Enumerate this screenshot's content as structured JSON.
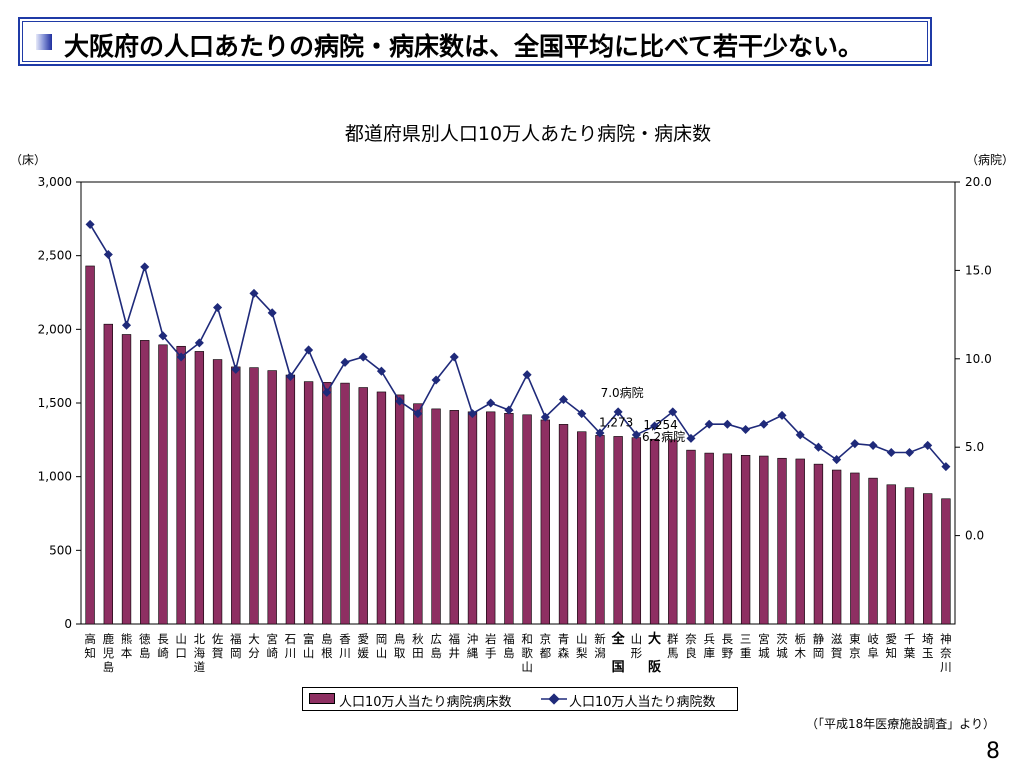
{
  "slide": {
    "header_text": "大阪府の人口あたりの病院・病床数は、全国平均に比べて若干少ない。",
    "source_note": "（「平成18年医療施設調査」より）",
    "page_number": "8"
  },
  "colors": {
    "bar": "#8e2f62",
    "line": "#1f2a7a",
    "header_border": "#1f3aa6"
  },
  "chart_data": {
    "type": "bar+line",
    "title": "都道府県別人口10万人あたり病院・病床数",
    "y_left_unit": "（床）",
    "y_right_unit": "（病院）",
    "y_left_range": [
      0,
      3000
    ],
    "y_left_ticks": [
      "0",
      "500",
      "1,000",
      "1,500",
      "2,000",
      "2,500",
      "3,000"
    ],
    "y_right_range": [
      -5,
      20
    ],
    "y_right_ticks": [
      "0.0",
      "5.0",
      "10.0",
      "15.0",
      "20.0"
    ],
    "grid": false,
    "legend_position": "bottom",
    "categories": [
      [
        "高",
        "知"
      ],
      [
        "鹿",
        "児",
        "島"
      ],
      [
        "熊",
        "本"
      ],
      [
        "徳",
        "島"
      ],
      [
        "長",
        "崎"
      ],
      [
        "山",
        "口"
      ],
      [
        "北",
        "海",
        "道"
      ],
      [
        "佐",
        "賀"
      ],
      [
        "福",
        "岡"
      ],
      [
        "大",
        "分"
      ],
      [
        "宮",
        "崎"
      ],
      [
        "石",
        "川"
      ],
      [
        "富",
        "山"
      ],
      [
        "島",
        "根"
      ],
      [
        "香",
        "川"
      ],
      [
        "愛",
        "媛"
      ],
      [
        "岡",
        "山"
      ],
      [
        "鳥",
        "取"
      ],
      [
        "秋",
        "田"
      ],
      [
        "広",
        "島"
      ],
      [
        "福",
        "井"
      ],
      [
        "沖",
        "縄"
      ],
      [
        "岩",
        "手"
      ],
      [
        "福",
        "島"
      ],
      [
        "和",
        "歌",
        "山"
      ],
      [
        "京",
        "都"
      ],
      [
        "青",
        "森"
      ],
      [
        "山",
        "梨"
      ],
      [
        "新",
        "潟"
      ],
      [
        "全",
        "",
        "国"
      ],
      [
        "山",
        "形"
      ],
      [
        "大",
        "",
        "阪"
      ],
      [
        "群",
        "馬"
      ],
      [
        "奈",
        "良"
      ],
      [
        "兵",
        "庫"
      ],
      [
        "長",
        "野"
      ],
      [
        "三",
        "重"
      ],
      [
        "宮",
        "城"
      ],
      [
        "茨",
        "城"
      ],
      [
        "栃",
        "木"
      ],
      [
        "静",
        "岡"
      ],
      [
        "滋",
        "賀"
      ],
      [
        "東",
        "京"
      ],
      [
        "岐",
        "阜"
      ],
      [
        "愛",
        "知"
      ],
      [
        "千",
        "葉"
      ],
      [
        "埼",
        "玉"
      ],
      [
        "神",
        "奈",
        "川"
      ]
    ],
    "bold_categories": [
      29,
      31
    ],
    "series": [
      {
        "name": "人口10万人当たり病院病床数",
        "type": "bar",
        "axis": "left",
        "values": [
          2430,
          2035,
          1965,
          1925,
          1895,
          1885,
          1850,
          1795,
          1745,
          1740,
          1720,
          1690,
          1645,
          1640,
          1635,
          1605,
          1575,
          1555,
          1495,
          1460,
          1450,
          1440,
          1440,
          1430,
          1420,
          1385,
          1355,
          1305,
          1280,
          1273,
          1265,
          1254,
          1250,
          1180,
          1160,
          1155,
          1145,
          1140,
          1125,
          1120,
          1085,
          1045,
          1025,
          990,
          945,
          925,
          885,
          850
        ]
      },
      {
        "name": "人口10万人当たり病院数",
        "type": "line",
        "axis": "right",
        "values": [
          17.6,
          15.9,
          11.9,
          15.2,
          11.3,
          10.1,
          10.9,
          12.9,
          9.4,
          13.7,
          12.6,
          9.0,
          10.5,
          8.1,
          9.8,
          10.1,
          9.3,
          7.6,
          6.9,
          8.8,
          10.1,
          6.9,
          7.5,
          7.1,
          9.1,
          6.7,
          7.7,
          6.9,
          5.8,
          7.0,
          5.7,
          6.2,
          7.0,
          5.5,
          6.3,
          6.3,
          6.0,
          6.3,
          6.8,
          5.7,
          5.0,
          4.3,
          5.2,
          5.1,
          4.7,
          4.7,
          5.1,
          3.9
        ]
      }
    ],
    "annotations": [
      {
        "text": "7.0病院",
        "series": 1,
        "index": 29
      },
      {
        "text": "6.2病院",
        "series": 1,
        "index": 31
      },
      {
        "text": "1,273",
        "series": 0,
        "index": 29
      },
      {
        "text": "1,254",
        "series": 0,
        "index": 31
      }
    ]
  }
}
